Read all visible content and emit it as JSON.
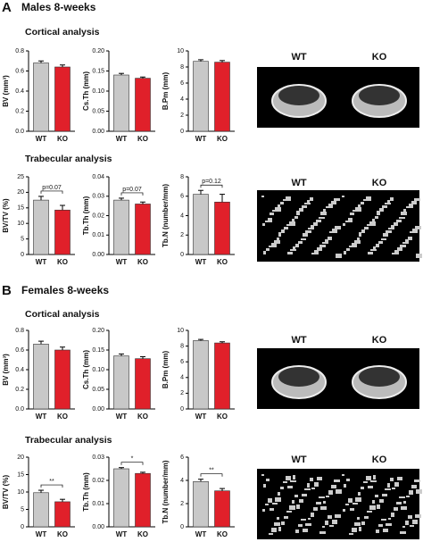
{
  "panels": [
    {
      "label": "A",
      "title": "Males 8-weeks",
      "sections": [
        {
          "title": "Cortical analysis",
          "image_labels": [
            "WT",
            "KO"
          ]
        },
        {
          "title": "Trabecular analysis",
          "image_labels": [
            "WT",
            "KO"
          ]
        }
      ]
    },
    {
      "label": "B",
      "title": "Females 8-weeks",
      "sections": [
        {
          "title": "Cortical analysis",
          "image_labels": [
            "WT",
            "KO"
          ]
        },
        {
          "title": "Trabecular analysis",
          "image_labels": [
            "WT",
            "KO"
          ]
        }
      ]
    }
  ],
  "chart_data": [
    {
      "type": "bar",
      "y_label": "BV (mm³)",
      "categories": [
        "WT",
        "KO"
      ],
      "values": [
        0.68,
        0.64
      ],
      "errors": [
        0.02,
        0.02
      ],
      "colors": [
        "#c8c8c8",
        "#e0202a"
      ],
      "ylim": [
        0,
        0.8
      ],
      "yticks": [
        {
          "value": 0,
          "label": "0.0"
        },
        {
          "value": 0.2,
          "label": "0.2"
        },
        {
          "value": 0.4,
          "label": "0.4"
        },
        {
          "value": 0.6,
          "label": "0.6"
        },
        {
          "value": 0.8,
          "label": "0.8"
        }
      ]
    },
    {
      "type": "bar",
      "y_label": "Cs.Th (mm)",
      "categories": [
        "WT",
        "KO"
      ],
      "values": [
        0.14,
        0.132
      ],
      "errors": [
        0.004,
        0.003
      ],
      "colors": [
        "#c8c8c8",
        "#e0202a"
      ],
      "ylim": [
        0,
        0.2
      ],
      "yticks": [
        {
          "value": 0,
          "label": "0.00"
        },
        {
          "value": 0.05,
          "label": "0.05"
        },
        {
          "value": 0.1,
          "label": "0.10"
        },
        {
          "value": 0.15,
          "label": "0.15"
        },
        {
          "value": 0.2,
          "label": "0.20"
        }
      ]
    },
    {
      "type": "bar",
      "y_label": "B.Pm (mm)",
      "categories": [
        "WT",
        "KO"
      ],
      "values": [
        8.7,
        8.6
      ],
      "errors": [
        0.2,
        0.2
      ],
      "colors": [
        "#c8c8c8",
        "#e0202a"
      ],
      "ylim": [
        0,
        10
      ],
      "yticks": [
        0,
        2,
        4,
        6,
        8,
        10
      ]
    },
    {
      "type": "bar",
      "y_label": "BV/TV (%)",
      "categories": [
        "WT",
        "KO"
      ],
      "values": [
        17.5,
        14.3
      ],
      "errors": [
        1.2,
        1.5
      ],
      "colors": [
        "#c8c8c8",
        "#e0202a"
      ],
      "ylim": [
        0,
        25
      ],
      "yticks": [
        0,
        5,
        10,
        15,
        20,
        25
      ],
      "annotation": "p=0.07"
    },
    {
      "type": "bar",
      "y_label": "Tb.Th (mm)",
      "categories": [
        "WT",
        "KO"
      ],
      "values": [
        0.028,
        0.026
      ],
      "errors": [
        0.001,
        0.001
      ],
      "colors": [
        "#c8c8c8",
        "#e0202a"
      ],
      "ylim": [
        0,
        0.04
      ],
      "yticks": [
        {
          "value": 0,
          "label": "0.00"
        },
        {
          "value": 0.01,
          "label": "0.01"
        },
        {
          "value": 0.02,
          "label": "0.02"
        },
        {
          "value": 0.03,
          "label": "0.03"
        },
        {
          "value": 0.04,
          "label": "0.04"
        }
      ],
      "annotation": "p=0.07"
    },
    {
      "type": "bar",
      "y_label": "Tb.N (number/mm)",
      "categories": [
        "WT",
        "KO"
      ],
      "values": [
        6.2,
        5.4
      ],
      "errors": [
        0.4,
        0.8
      ],
      "colors": [
        "#c8c8c8",
        "#e0202a"
      ],
      "ylim": [
        0,
        8
      ],
      "yticks": [
        0,
        2,
        4,
        6,
        8
      ],
      "annotation": "p=0.12"
    },
    {
      "type": "bar",
      "y_label": "BV (mm³)",
      "categories": [
        "WT",
        "KO"
      ],
      "values": [
        0.66,
        0.6
      ],
      "errors": [
        0.03,
        0.03
      ],
      "colors": [
        "#c8c8c8",
        "#e0202a"
      ],
      "ylim": [
        0,
        0.8
      ],
      "yticks": [
        {
          "value": 0,
          "label": "0.0"
        },
        {
          "value": 0.2,
          "label": "0.2"
        },
        {
          "value": 0.4,
          "label": "0.4"
        },
        {
          "value": 0.6,
          "label": "0.6"
        },
        {
          "value": 0.8,
          "label": "0.8"
        }
      ]
    },
    {
      "type": "bar",
      "y_label": "Cs.Th (mm)",
      "categories": [
        "WT",
        "KO"
      ],
      "values": [
        0.135,
        0.128
      ],
      "errors": [
        0.005,
        0.005
      ],
      "colors": [
        "#c8c8c8",
        "#e0202a"
      ],
      "ylim": [
        0,
        0.2
      ],
      "yticks": [
        {
          "value": 0,
          "label": "0.00"
        },
        {
          "value": 0.05,
          "label": "0.05"
        },
        {
          "value": 0.1,
          "label": "0.10"
        },
        {
          "value": 0.15,
          "label": "0.15"
        },
        {
          "value": 0.2,
          "label": "0.20"
        }
      ]
    },
    {
      "type": "bar",
      "y_label": "B.Pm (mm)",
      "categories": [
        "WT",
        "KO"
      ],
      "values": [
        8.7,
        8.4
      ],
      "errors": [
        0.15,
        0.15
      ],
      "colors": [
        "#c8c8c8",
        "#e0202a"
      ],
      "ylim": [
        0,
        10
      ],
      "yticks": [
        0,
        2,
        4,
        6,
        8,
        10
      ]
    },
    {
      "type": "bar",
      "y_label": "BV/TV (%)",
      "categories": [
        "WT",
        "KO"
      ],
      "values": [
        9.8,
        7.2
      ],
      "errors": [
        0.7,
        0.7
      ],
      "colors": [
        "#c8c8c8",
        "#e0202a"
      ],
      "ylim": [
        0,
        20
      ],
      "yticks": [
        0,
        5,
        10,
        15,
        20
      ],
      "annotation": "**"
    },
    {
      "type": "bar",
      "y_label": "Tb.Th (mm)",
      "categories": [
        "WT",
        "KO"
      ],
      "values": [
        0.025,
        0.023
      ],
      "errors": [
        0.0005,
        0.0005
      ],
      "colors": [
        "#c8c8c8",
        "#e0202a"
      ],
      "ylim": [
        0,
        0.03
      ],
      "yticks": [
        {
          "value": 0,
          "label": "0.00"
        },
        {
          "value": 0.01,
          "label": "0.01"
        },
        {
          "value": 0.02,
          "label": "0.02"
        },
        {
          "value": 0.03,
          "label": "0.03"
        }
      ],
      "annotation": "*"
    },
    {
      "type": "bar",
      "y_label": "Tb.N (number/mm)",
      "categories": [
        "WT",
        "KO"
      ],
      "values": [
        3.9,
        3.1
      ],
      "errors": [
        0.2,
        0.2
      ],
      "colors": [
        "#c8c8c8",
        "#e0202a"
      ],
      "ylim": [
        0,
        6
      ],
      "yticks": [
        0,
        2,
        4,
        6
      ],
      "annotation": "**"
    }
  ]
}
